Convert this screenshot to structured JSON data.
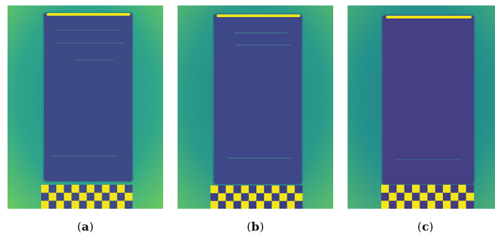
{
  "figure": {
    "panels": [
      {
        "id": "a",
        "caption_open": "(",
        "caption_letter": "a",
        "caption_close": ")",
        "colors": {
          "background_light": "#2fa58b",
          "background_mid": "#1f8f8c",
          "background_edge": "#6dcb5e",
          "slab_fill": "#3d4a86",
          "slab_edge": "#2f8e8b",
          "top_stripe": "#e8e51f",
          "checker_yellow": "#f3e51c",
          "checker_dark": "#3d4b86",
          "scratch": "#5a7fa0"
        }
      },
      {
        "id": "b",
        "caption_open": "(",
        "caption_letter": "b",
        "caption_close": ")",
        "colors": {
          "background_light": "#2a9a8a",
          "background_mid": "#24838c",
          "background_edge": "#5fbf6a",
          "slab_fill": "#3e4788",
          "slab_edge": "#2f7d8c",
          "top_stripe": "#e8e51f",
          "checker_yellow": "#f3e51c",
          "checker_dark": "#3a3f82",
          "scratch": "#49a293"
        }
      },
      {
        "id": "c",
        "caption_open": "(",
        "caption_letter": "c",
        "caption_close": ")",
        "colors": {
          "background_light": "#25938b",
          "background_mid": "#20788c",
          "background_edge": "#52b273",
          "slab_fill": "#453f83",
          "slab_edge": "#326e8d",
          "top_stripe": "#f0e31b",
          "checker_yellow": "#f3e51c",
          "checker_dark": "#433a7f",
          "scratch": "#3d7a95"
        }
      }
    ]
  }
}
